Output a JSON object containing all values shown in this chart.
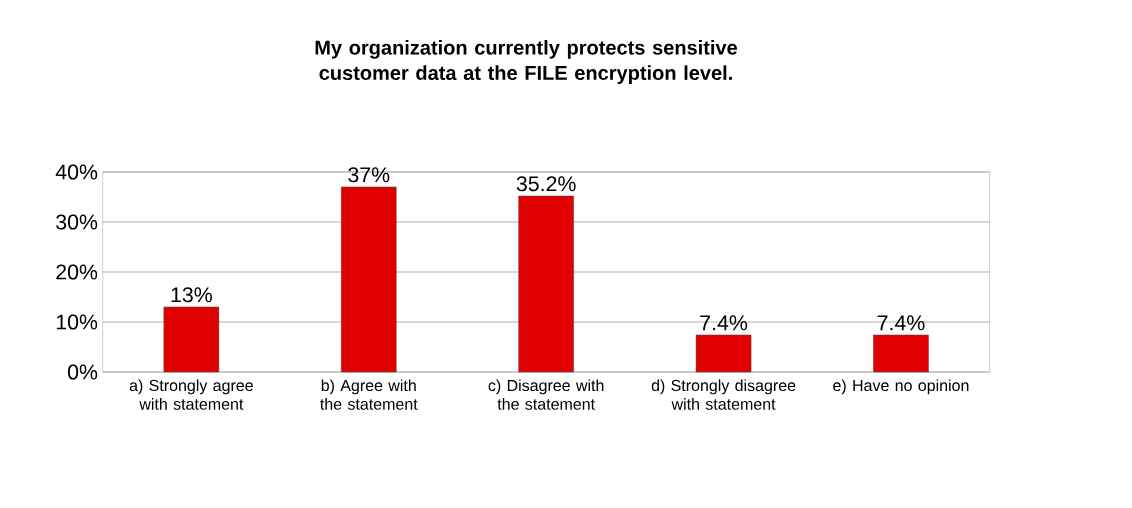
{
  "chart_data": {
    "type": "bar",
    "title": "My organization currently protects sensitive customer data at the FILE encryption level.",
    "categories": [
      "a) Strongly agree with statement",
      "b) Agree with the statement",
      "c) Disagree with the statement",
      "d) Strongly disagree with statement",
      "e) Have no opinion"
    ],
    "values": [
      13,
      37,
      35.2,
      7.4,
      7.4
    ],
    "value_labels": [
      "13%",
      "37%",
      "35.2%",
      "7.4%",
      "7.4%"
    ],
    "color": "#e00000",
    "ylim": [
      0,
      40
    ],
    "yticks": [
      {
        "value": 0,
        "label": "0%"
      },
      {
        "value": 10,
        "label": "10%"
      },
      {
        "value": 20,
        "label": "20%"
      },
      {
        "value": 30,
        "label": "30%"
      },
      {
        "value": 40,
        "label": "40%"
      }
    ],
    "grid": "y"
  }
}
